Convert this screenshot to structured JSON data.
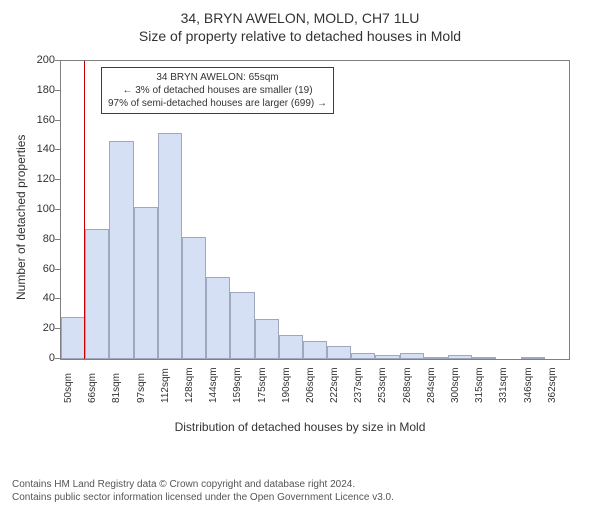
{
  "header": {
    "title_main": "34, BRYN AWELON, MOLD, CH7 1LU",
    "title_sub": "Size of property relative to detached houses in Mold"
  },
  "chart": {
    "type": "histogram",
    "ylabel": "Number of detached properties",
    "xlabel": "Distribution of detached houses by size in Mold",
    "ylim": [
      0,
      200
    ],
    "ytick_step": 20,
    "background_color": "#ffffff",
    "axis_color": "#808080",
    "bar_fill": "#d6e0f5",
    "bar_stroke": "#a0a8c0",
    "marker_x_value": 65,
    "marker_color": "#cc0000",
    "x_start": 50,
    "x_step": 15.5,
    "categories": [
      "50sqm",
      "66sqm",
      "81sqm",
      "97sqm",
      "112sqm",
      "128sqm",
      "144sqm",
      "159sqm",
      "175sqm",
      "190sqm",
      "206sqm",
      "222sqm",
      "237sqm",
      "253sqm",
      "268sqm",
      "284sqm",
      "300sqm",
      "315sqm",
      "331sqm",
      "346sqm",
      "362sqm"
    ],
    "values": [
      28,
      87,
      146,
      102,
      152,
      82,
      55,
      45,
      27,
      16,
      12,
      9,
      4,
      3,
      4,
      1,
      3,
      1,
      0,
      1,
      0
    ],
    "annotation": {
      "line1": "34 BRYN AWELON: 65sqm",
      "line2": "← 3% of detached houses are smaller (19)",
      "line3": "97% of semi-detached houses are larger (699) →",
      "border_color": "#cc0000",
      "fontsize": 10
    }
  },
  "footer": {
    "line1": "Contains HM Land Registry data © Crown copyright and database right 2024.",
    "line2": "Contains public sector information licensed under the Open Government Licence v3.0."
  }
}
